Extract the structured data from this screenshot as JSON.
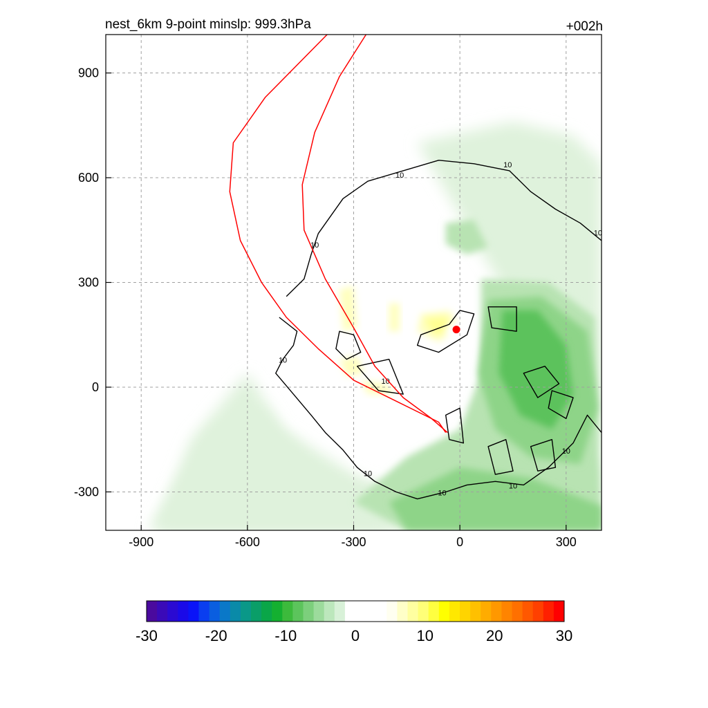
{
  "header": {
    "title_left": "nest_6km  9-point minslp: 999.3hPa",
    "title_right": "+002h"
  },
  "chart_data": {
    "type": "heatmap",
    "xlim": [
      -1000,
      400
    ],
    "ylim": [
      -410,
      1010
    ],
    "grid": true,
    "x_ticks": [
      -900,
      -600,
      -300,
      0,
      300
    ],
    "x_tick_labels": [
      "-900",
      "-600",
      "-300",
      "0",
      "300"
    ],
    "y_ticks": [
      900,
      600,
      300,
      0,
      -300
    ],
    "y_tick_labels": [
      "900",
      "600",
      "300",
      "0",
      "-300"
    ],
    "center_marker": {
      "x": -10,
      "y": 165,
      "color": "#ff0000"
    },
    "red_track_lines": [
      {
        "color": "#ff0000",
        "points": [
          [
            -375,
            1010
          ],
          [
            -550,
            830
          ],
          [
            -640,
            700
          ],
          [
            -650,
            560
          ],
          [
            -620,
            420
          ],
          [
            -560,
            300
          ],
          [
            -490,
            200
          ],
          [
            -400,
            110
          ],
          [
            -300,
            20
          ],
          [
            -180,
            -40
          ],
          [
            -60,
            -100
          ],
          [
            -40,
            -130
          ]
        ]
      },
      {
        "color": "#ff0000",
        "points": [
          [
            -265,
            1010
          ],
          [
            -340,
            890
          ],
          [
            -410,
            730
          ],
          [
            -445,
            580
          ],
          [
            -440,
            450
          ],
          [
            -380,
            310
          ],
          [
            -300,
            170
          ],
          [
            -240,
            60
          ],
          [
            -160,
            -30
          ],
          [
            -80,
            -90
          ],
          [
            -35,
            -130
          ]
        ]
      }
    ],
    "contour_level": 10,
    "contour_labels": [
      {
        "x": -170,
        "y": 600,
        "text": "10"
      },
      {
        "x": 135,
        "y": 630,
        "text": "10"
      },
      {
        "x": 390,
        "y": 435,
        "text": "10"
      },
      {
        "x": -410,
        "y": 400,
        "text": "10"
      },
      {
        "x": -500,
        "y": 70,
        "text": "10"
      },
      {
        "x": -210,
        "y": 10,
        "text": "10"
      },
      {
        "x": -260,
        "y": -255,
        "text": "10"
      },
      {
        "x": -50,
        "y": -310,
        "text": "10"
      },
      {
        "x": 150,
        "y": -290,
        "text": "10"
      },
      {
        "x": 300,
        "y": -190,
        "text": "10"
      }
    ],
    "colorbar": {
      "min": -30,
      "max": 30,
      "tick_values": [
        -30,
        -20,
        -10,
        0,
        10,
        20,
        30
      ],
      "tick_labels": [
        "-30",
        "-20",
        "-10",
        "0",
        "10",
        "20",
        "30"
      ],
      "colors": [
        "#4a0a9e",
        "#3a0ab8",
        "#2a0ad2",
        "#1a0ae8",
        "#0a14f8",
        "#0a3ef0",
        "#0a5ee0",
        "#0a78c8",
        "#0a8aa8",
        "#0a9888",
        "#0a9e68",
        "#0aa648",
        "#14b030",
        "#3cba3c",
        "#5cc45c",
        "#7ccf7c",
        "#9cdb9c",
        "#bce7bc",
        "#d8f1d8",
        "#ffffff",
        "#ffffff",
        "#ffffff",
        "#ffffff",
        "#fffff0",
        "#ffffc8",
        "#ffffa0",
        "#ffff78",
        "#ffff40",
        "#ffff00",
        "#ffe800",
        "#ffd400",
        "#ffc000",
        "#ffac00",
        "#ff9800",
        "#ff8400",
        "#ff7000",
        "#ff5800",
        "#ff4000",
        "#ff2000",
        "#ff0000"
      ]
    },
    "field_colors": {
      "light_green": "#dff2dc",
      "mid_green": "#b8e3b2",
      "green": "#8ed488",
      "dark_green": "#5cc25c",
      "light_yellow": "#ffffc0",
      "yellow": "#ffff90"
    }
  }
}
